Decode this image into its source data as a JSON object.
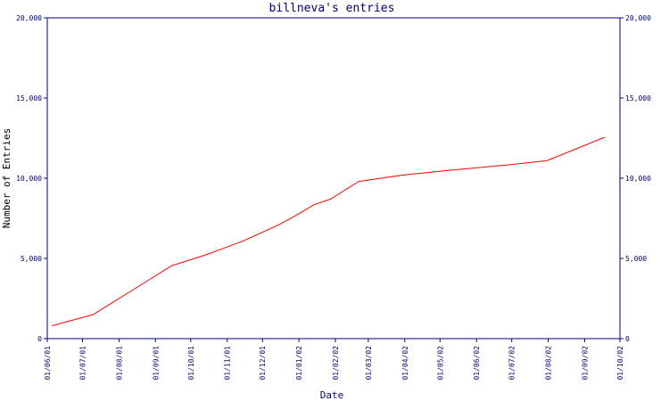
{
  "chart_data": {
    "type": "line",
    "title": "billneva's entries",
    "xlabel": "Date",
    "ylabel": "Number of Entries",
    "x_ticks": [
      "01/06/01",
      "01/07/01",
      "01/08/01",
      "01/09/01",
      "01/10/01",
      "01/11/01",
      "01/12/01",
      "01/01/02",
      "01/02/02",
      "01/03/02",
      "01/04/02",
      "01/05/02",
      "01/06/02",
      "01/07/02",
      "01/08/02",
      "01/09/02",
      "01/10/02"
    ],
    "y_ticks": [
      "0",
      "5,000",
      "10,000",
      "15,000",
      "20,000"
    ],
    "ylim": [
      0,
      20000
    ],
    "xlim": [
      "01/06/01",
      "01/10/02"
    ],
    "grid": false,
    "line_color": "#ff0000",
    "axis_color": "#000080",
    "series": [
      {
        "points": [
          {
            "x": "2001-06-05",
            "y": 800
          },
          {
            "x": "2001-07-10",
            "y": 1500
          },
          {
            "x": "2001-08-12",
            "y": 3000
          },
          {
            "x": "2001-09-15",
            "y": 4550
          },
          {
            "x": "2001-10-15",
            "y": 5250
          },
          {
            "x": "2001-11-15",
            "y": 6100
          },
          {
            "x": "2001-12-15",
            "y": 7100
          },
          {
            "x": "2001-12-30",
            "y": 7700
          },
          {
            "x": "2002-01-14",
            "y": 8350
          },
          {
            "x": "2002-01-28",
            "y": 8700
          },
          {
            "x": "2002-02-21",
            "y": 9800
          },
          {
            "x": "2002-03-31",
            "y": 10200
          },
          {
            "x": "2002-05-10",
            "y": 10500
          },
          {
            "x": "2002-06-30",
            "y": 10850
          },
          {
            "x": "2002-07-31",
            "y": 11100
          },
          {
            "x": "2002-09-18",
            "y": 12550
          }
        ]
      }
    ]
  }
}
